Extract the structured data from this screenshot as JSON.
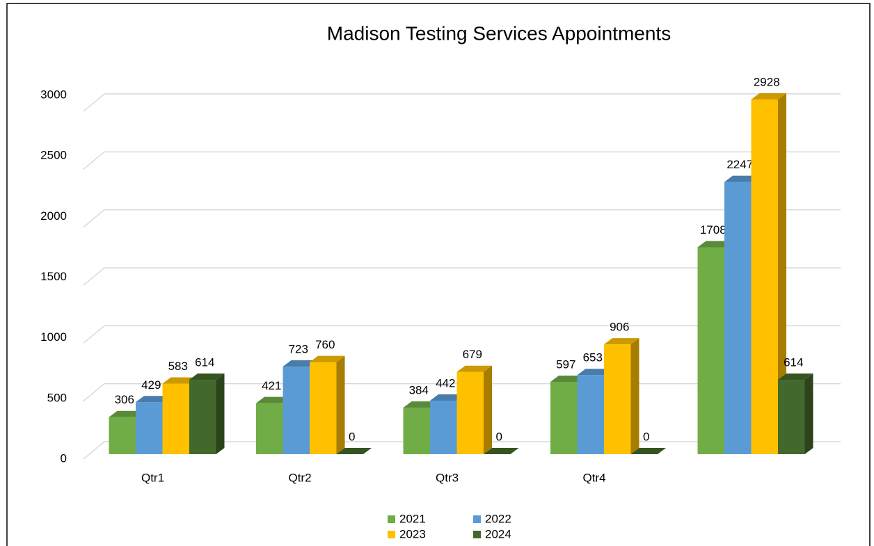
{
  "chart_data": {
    "type": "bar3d",
    "title": "Madison Testing Services Appointments",
    "categories": [
      "Qtr1",
      "Qtr2",
      "Qtr3",
      "Qtr4",
      null
    ],
    "series": [
      {
        "name": "2021",
        "color": "#70ad47",
        "values": [
          306,
          421,
          384,
          597,
          1708
        ]
      },
      {
        "name": "2022",
        "color": "#5b9bd5",
        "values": [
          429,
          723,
          442,
          653,
          2247
        ]
      },
      {
        "name": "2023",
        "color": "#ffc000",
        "values": [
          583,
          760,
          679,
          906,
          2928
        ]
      },
      {
        "name": "2024",
        "color": "#43682b",
        "values": [
          614,
          0,
          0,
          0,
          614
        ]
      }
    ],
    "ylim": [
      0,
      3000
    ],
    "yticks": [
      0,
      500,
      1000,
      1500,
      2000,
      2500,
      3000
    ],
    "grid": true,
    "legend": "bottom"
  }
}
